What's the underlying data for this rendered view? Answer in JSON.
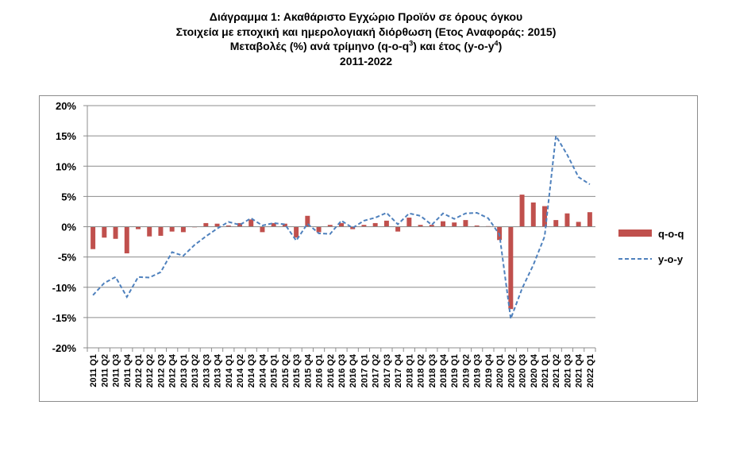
{
  "title": {
    "line1": "Διάγραμμα 1: Ακαθάριστο Εγχώριο Προϊόν σε όρους όγκου",
    "line2": "Στοιχεία με εποχική και ημερολογιακή διόρθωση (Ετος Αναφοράς: 2015)",
    "line3_pre": "Μεταβολές (%) ανά τρίμηνο (q-o-q",
    "line3_sup1": "3",
    "line3_mid": ") και έτος (y-o-y",
    "line3_sup2": "4",
    "line3_post": ")",
    "line4": "2011-2022"
  },
  "chart_data": {
    "type": "bar",
    "categories": [
      "2011 Q1",
      "2011 Q2",
      "2011 Q3",
      "2011 Q4",
      "2012 Q1",
      "2012 Q2",
      "2012 Q3",
      "2012 Q4",
      "2013 Q1",
      "2013 Q2",
      "2013 Q3",
      "2013 Q4",
      "2014 Q1",
      "2014 Q2",
      "2014 Q3",
      "2014 Q4",
      "2015 Q1",
      "2015 Q2",
      "2015 Q3",
      "2015 Q4",
      "2016 Q1",
      "2016 Q2",
      "2016 Q3",
      "2016 Q4",
      "2017 Q1",
      "2017 Q2",
      "2017 Q3",
      "2017 Q4",
      "2018 Q1",
      "2018 Q2",
      "2018 Q3",
      "2018 Q4",
      "2019 Q1",
      "2019 Q2",
      "2019 Q3",
      "2019 Q4",
      "2020 Q1",
      "2020 Q2",
      "2020 Q3",
      "2020 Q4",
      "2021 Q1",
      "2021 Q2",
      "2021 Q3",
      "2021 Q4",
      "2022 Q1"
    ],
    "series": [
      {
        "name": "q-o-q",
        "kind": "bar",
        "color": "#c0504d",
        "values": [
          -3.7,
          -1.8,
          -2.0,
          -4.4,
          -0.4,
          -1.6,
          -1.5,
          -0.8,
          -0.9,
          -0.1,
          0.6,
          0.5,
          0.2,
          0.6,
          1.2,
          -0.9,
          0.6,
          0.5,
          -1.8,
          1.8,
          -0.9,
          0.3,
          0.6,
          -0.4,
          0.3,
          0.6,
          1.0,
          -0.8,
          1.5,
          0.3,
          0.3,
          0.9,
          0.7,
          1.1,
          0.2,
          0.1,
          -2.2,
          -13.6,
          5.3,
          4.0,
          3.4,
          1.1,
          2.2,
          0.8,
          2.4
        ]
      },
      {
        "name": "y-o-y",
        "kind": "line",
        "color": "#4f81bd",
        "values": [
          -11.3,
          -9.3,
          -8.3,
          -11.6,
          -8.3,
          -8.4,
          -7.5,
          -4.2,
          -4.8,
          -3.0,
          -1.6,
          -0.3,
          0.8,
          0.3,
          1.4,
          0.2,
          0.6,
          0.4,
          -2.3,
          0.5,
          -1.1,
          -1.2,
          1.0,
          -0.2,
          1.0,
          1.5,
          2.3,
          0.4,
          2.2,
          1.8,
          0.3,
          2.2,
          1.3,
          2.2,
          2.3,
          1.4,
          -1.3,
          -15.2,
          -10.2,
          -6.3,
          -1.6,
          15.0,
          11.9,
          8.2,
          7.0
        ]
      }
    ],
    "y_ticks": [
      "20%",
      "15%",
      "10%",
      "5%",
      "0%",
      "-5%",
      "-10%",
      "-15%",
      "-20%"
    ],
    "ylim": [
      -20,
      20
    ],
    "grid": true,
    "legend": "right"
  }
}
